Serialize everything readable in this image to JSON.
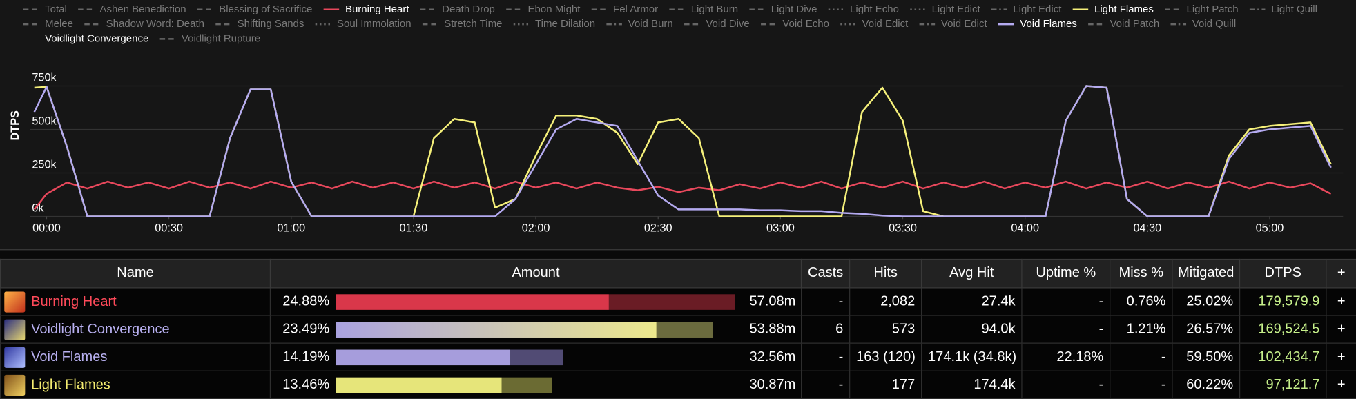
{
  "chart_data": {
    "type": "line",
    "y_label": "DTPS",
    "xlim": [
      -4,
      318
    ],
    "xticks": [
      {
        "value": 0,
        "label": "00:00"
      },
      {
        "value": 30,
        "label": "00:30"
      },
      {
        "value": 60,
        "label": "01:00"
      },
      {
        "value": 90,
        "label": "01:30"
      },
      {
        "value": 120,
        "label": "02:00"
      },
      {
        "value": 150,
        "label": "02:30"
      },
      {
        "value": 180,
        "label": "03:00"
      },
      {
        "value": 210,
        "label": "03:30"
      },
      {
        "value": 240,
        "label": "04:00"
      },
      {
        "value": 270,
        "label": "04:30"
      },
      {
        "value": 300,
        "label": "05:00"
      }
    ],
    "ylim": [
      0,
      1000000
    ],
    "yticks": [
      {
        "value": 0,
        "label": "0k"
      },
      {
        "value": 250000,
        "label": "250k"
      },
      {
        "value": 500000,
        "label": "500k"
      },
      {
        "value": 750000,
        "label": "750k"
      }
    ],
    "grid": true,
    "x": [
      -3,
      0,
      5,
      10,
      15,
      20,
      25,
      30,
      35,
      40,
      45,
      50,
      55,
      60,
      65,
      70,
      75,
      80,
      85,
      90,
      95,
      100,
      105,
      110,
      115,
      120,
      125,
      130,
      135,
      140,
      145,
      150,
      155,
      160,
      165,
      170,
      175,
      180,
      185,
      190,
      195,
      200,
      205,
      210,
      215,
      220,
      225,
      230,
      235,
      240,
      245,
      250,
      255,
      260,
      265,
      270,
      275,
      280,
      285,
      290,
      295,
      300,
      305,
      310,
      315
    ],
    "series": [
      {
        "name": "Total",
        "color": "#666666",
        "style": "dashed"
      },
      {
        "name": "Ashen Benediction",
        "color": "#666666",
        "style": "dashed"
      },
      {
        "name": "Blessing of Sacrifice",
        "color": "#666666",
        "style": "dashed"
      },
      {
        "name": "Burning Heart",
        "color": "#e8485c",
        "style": "solid",
        "visible": true,
        "values": [
          40000,
          130000,
          195000,
          160000,
          200000,
          165000,
          195000,
          160000,
          200000,
          165000,
          195000,
          160000,
          200000,
          165000,
          195000,
          160000,
          200000,
          165000,
          195000,
          160000,
          200000,
          165000,
          195000,
          160000,
          200000,
          165000,
          195000,
          160000,
          195000,
          165000,
          150000,
          170000,
          140000,
          165000,
          150000,
          185000,
          160000,
          195000,
          165000,
          200000,
          160000,
          195000,
          165000,
          200000,
          160000,
          195000,
          165000,
          200000,
          160000,
          195000,
          165000,
          200000,
          160000,
          195000,
          165000,
          200000,
          160000,
          195000,
          165000,
          200000,
          160000,
          195000,
          165000,
          190000,
          130000
        ]
      },
      {
        "name": "Death Drop",
        "color": "#666666",
        "style": "dashed"
      },
      {
        "name": "Ebon Might",
        "color": "#666666",
        "style": "dashed"
      },
      {
        "name": "Fel Armor",
        "color": "#666666",
        "style": "dashed"
      },
      {
        "name": "Light Burn",
        "color": "#666666",
        "style": "dashed"
      },
      {
        "name": "Light Dive",
        "color": "#666666",
        "style": "dashed"
      },
      {
        "name": "Light Echo",
        "color": "#666666",
        "style": "dotted"
      },
      {
        "name": "Light Edict",
        "color": "#666666",
        "style": "dotted"
      },
      {
        "name": "Light Edict",
        "color": "#666666",
        "style": "dashdot"
      },
      {
        "name": "Light Flames",
        "color": "#f5f07a",
        "style": "solid",
        "visible": true,
        "values": [
          740000,
          745000,
          400000,
          0,
          0,
          0,
          0,
          0,
          0,
          0,
          450000,
          730000,
          730000,
          200000,
          0,
          0,
          0,
          0,
          0,
          0,
          450000,
          560000,
          540000,
          50000,
          100000,
          350000,
          580000,
          580000,
          560000,
          480000,
          300000,
          540000,
          560000,
          450000,
          0,
          0,
          0,
          0,
          0,
          0,
          0,
          600000,
          740000,
          550000,
          30000,
          0,
          0,
          0,
          0,
          0,
          0,
          550000,
          750000,
          740000,
          100000,
          0,
          0,
          0,
          0,
          350000,
          500000,
          520000,
          530000,
          540000,
          300000
        ]
      },
      {
        "name": "Light Patch",
        "color": "#666666",
        "style": "dashed"
      },
      {
        "name": "Light Quill",
        "color": "#666666",
        "style": "dashdot"
      },
      {
        "name": "Melee",
        "color": "#666666",
        "style": "dashed"
      },
      {
        "name": "Shadow Word: Death",
        "color": "#666666",
        "style": "dashed"
      },
      {
        "name": "Shifting Sands",
        "color": "#666666",
        "style": "dashed"
      },
      {
        "name": "Soul Immolation",
        "color": "#666666",
        "style": "dotted"
      },
      {
        "name": "Stretch Time",
        "color": "#666666",
        "style": "dashed"
      },
      {
        "name": "Time Dilation",
        "color": "#666666",
        "style": "dotted"
      },
      {
        "name": "Void Burn",
        "color": "#666666",
        "style": "dashdot"
      },
      {
        "name": "Void Dive",
        "color": "#666666",
        "style": "dashed"
      },
      {
        "name": "Void Echo",
        "color": "#666666",
        "style": "dashed"
      },
      {
        "name": "Void Edict",
        "color": "#666666",
        "style": "dotted"
      },
      {
        "name": "Void Edict",
        "color": "#666666",
        "style": "dashdot"
      },
      {
        "name": "Void Flames",
        "color": "#b4aaf0",
        "style": "solid",
        "visible": true,
        "values": [
          600000,
          745000,
          400000,
          0,
          0,
          0,
          0,
          0,
          0,
          0,
          450000,
          730000,
          730000,
          200000,
          0,
          0,
          0,
          0,
          0,
          0,
          0,
          0,
          0,
          0,
          100000,
          300000,
          500000,
          560000,
          540000,
          520000,
          320000,
          120000,
          40000,
          40000,
          40000,
          40000,
          35000,
          35000,
          30000,
          30000,
          20000,
          15000,
          5000,
          0,
          0,
          0,
          0,
          0,
          0,
          0,
          0,
          550000,
          750000,
          740000,
          100000,
          0,
          0,
          0,
          0,
          330000,
          480000,
          500000,
          510000,
          520000,
          280000
        ]
      },
      {
        "name": "Void Patch",
        "color": "#666666",
        "style": "dashed"
      },
      {
        "name": "Void Quill",
        "color": "#666666",
        "style": "dashdot"
      },
      {
        "name": "Voidlight Convergence",
        "color": "#ffffff",
        "style": "none",
        "visible": true
      },
      {
        "name": "Voidlight Rupture",
        "color": "#666666",
        "style": "dashed"
      }
    ]
  },
  "table": {
    "columns": [
      "Name",
      "Amount",
      "Casts",
      "Hits",
      "Avg Hit",
      "Uptime %",
      "Miss %",
      "Mitigated",
      "DTPS",
      "+"
    ],
    "rows": [
      {
        "name": "Burning Heart",
        "amount_pct": {
          "value": 24.88,
          "label": "24.88%"
        },
        "primary_share": 0.684,
        "amount": "57.08m",
        "casts": "-",
        "hits": "2,082",
        "avg_hit": "27.4k",
        "uptime": "-",
        "miss": "0.76%",
        "mitigated": "25.02%",
        "dtps": "179,579.9",
        "expand": "+"
      },
      {
        "name": "Voidlight Convergence",
        "amount_pct": {
          "value": 23.49,
          "label": "23.49%"
        },
        "primary_share": 0.851,
        "amount": "53.88m",
        "casts": "6",
        "hits": "573",
        "avg_hit": "94.0k",
        "uptime": "-",
        "miss": "1.21%",
        "mitigated": "26.57%",
        "dtps": "169,524.5",
        "expand": "+"
      },
      {
        "name": "Void Flames",
        "amount_pct": {
          "value": 14.19,
          "label": "14.19%"
        },
        "primary_share": 0.765,
        "amount": "32.56m",
        "casts": "-",
        "hits": "163 (120)",
        "avg_hit": "174.1k (34.8k)",
        "uptime": "22.18%",
        "miss": "-",
        "mitigated": "59.50%",
        "dtps": "102,434.7",
        "expand": "+"
      },
      {
        "name": "Light Flames",
        "amount_pct": {
          "value": 13.46,
          "label": "13.46%"
        },
        "primary_share": 0.768,
        "amount": "30.87m",
        "casts": "-",
        "hits": "177",
        "avg_hit": "174.4k",
        "uptime": "-",
        "miss": "-",
        "mitigated": "60.22%",
        "dtps": "97,121.7",
        "expand": "+"
      }
    ]
  }
}
